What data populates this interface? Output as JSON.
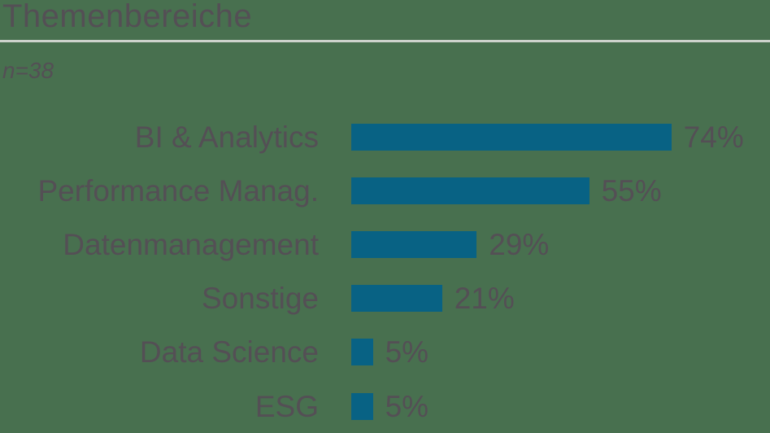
{
  "header": {
    "title": "Themenbereiche",
    "subtitle": "n=38"
  },
  "chart_data": {
    "type": "bar",
    "orientation": "horizontal",
    "title": "Themenbereiche",
    "subtitle": "n=38",
    "categories": [
      "BI & Analytics",
      "Performance Manag.",
      "Datenmanagement",
      "Sonstige",
      "Data Science",
      "ESG"
    ],
    "values": [
      74,
      55,
      29,
      21,
      5,
      5
    ],
    "value_labels": [
      "74%",
      "55%",
      "29%",
      "21%",
      "5%",
      "5%"
    ],
    "xlim": [
      0,
      100
    ],
    "grid": false,
    "legend_position": "none",
    "bar_color": "#086284",
    "text_color": "#544F55",
    "separator_color": "#CDD2CC",
    "background_color": "#48704F"
  }
}
